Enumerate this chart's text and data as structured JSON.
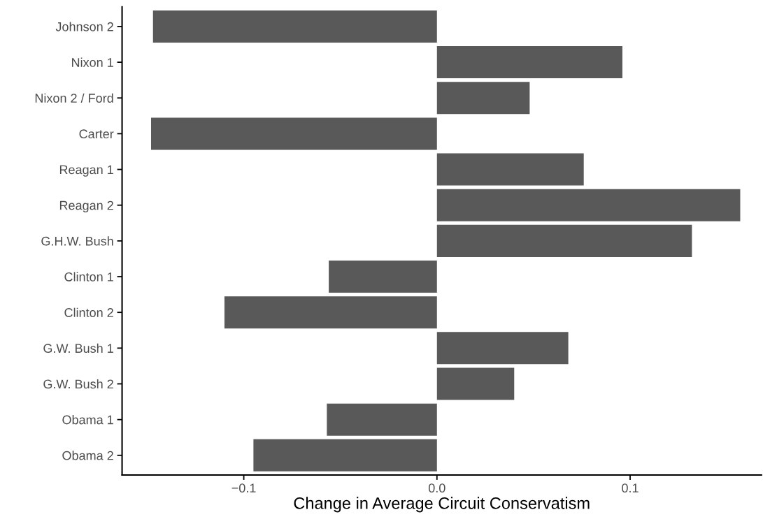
{
  "chart_data": {
    "type": "bar",
    "orientation": "horizontal",
    "xlabel": "Change in Average Circuit Conservatism",
    "categories": [
      "Johnson 2",
      "Nixon 1",
      "Nixon 2 / Ford",
      "Carter",
      "Reagan 1",
      "Reagan 2",
      "G.H.W. Bush",
      "Clinton 1",
      "Clinton 2",
      "G.W. Bush 1",
      "G.W. Bush 2",
      "Obama 1",
      "Obama 2"
    ],
    "values": [
      -0.147,
      0.096,
      0.048,
      -0.148,
      0.076,
      0.157,
      0.132,
      -0.056,
      -0.11,
      0.068,
      0.04,
      -0.057,
      -0.095
    ],
    "color": "#595959",
    "xlim": [
      -0.163,
      0.168
    ],
    "xticks": [
      {
        "value": -0.1,
        "label": "−0.1"
      },
      {
        "value": 0.0,
        "label": "0.0"
      },
      {
        "value": 0.1,
        "label": "0.1"
      }
    ],
    "grid": false
  }
}
